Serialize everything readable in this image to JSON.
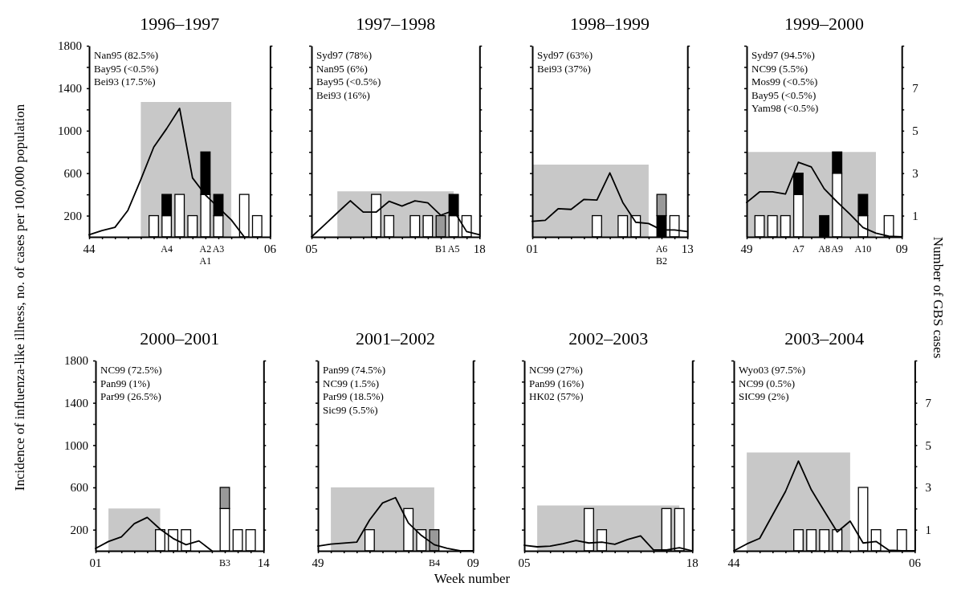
{
  "chart_data": [
    {
      "type": "bar",
      "title": "1996–1997",
      "ylabel": "Incidence of influenza-like illness, no. of cases per 100,000 population",
      "stacked": true,
      "tick_labels": "xy",
      "categories": [
        "44",
        null,
        null,
        null,
        null,
        null,
        "A4",
        null,
        null,
        "A2\nA1",
        "A3",
        null,
        null,
        null,
        "06"
      ],
      "ylim": [
        0,
        1800
      ],
      "yticks": [
        200,
        {
          "value": 400,
          "label": null
        },
        600,
        {
          "value": 800,
          "label": null
        },
        1000,
        {
          "value": 1200,
          "label": null
        },
        1400,
        {
          "value": 1600,
          "label": null
        },
        1800
      ],
      "y2lim": [
        0,
        9
      ],
      "series": [
        {
          "type": "area",
          "color": "#c8c8c8",
          "values": [
            null,
            null,
            null,
            null,
            1270,
            1270,
            1270,
            1270,
            1270,
            1270,
            1270,
            1270,
            null,
            null,
            null
          ]
        },
        {
          "axis": "y2",
          "color": "#ffffff",
          "values": [
            null,
            null,
            null,
            null,
            null,
            1,
            1,
            2,
            1,
            2,
            1,
            null,
            2,
            1,
            null
          ]
        },
        {
          "axis": "y2",
          "color": "#000000",
          "values": [
            null,
            null,
            null,
            null,
            null,
            null,
            1,
            null,
            null,
            2,
            1,
            null,
            null,
            null,
            null
          ]
        },
        {
          "type": "line",
          "color": "#000000",
          "values": [
            20,
            60,
            90,
            250,
            540,
            845,
            1020,
            1210,
            555,
            395,
            277,
            160,
            0,
            null,
            null
          ]
        }
      ],
      "annotations": [
        "Nan95 (82.5%)",
        "Bay95 (<0.5%)",
        "Bei93 (17.5%)"
      ]
    },
    {
      "type": "bar",
      "title": "1997–1998",
      "stacked": true,
      "tick_labels": "x",
      "categories": [
        "05",
        null,
        null,
        null,
        null,
        null,
        null,
        null,
        null,
        null,
        "B1",
        "A5",
        null,
        "18"
      ],
      "ylim": [
        0,
        1800
      ],
      "yticks": [
        200,
        {
          "value": 400,
          "label": null
        },
        600,
        {
          "value": 800,
          "label": null
        },
        1000,
        {
          "value": 1200,
          "label": null
        },
        1400,
        {
          "value": 1600,
          "label": null
        },
        1800
      ],
      "y2lim": [
        0,
        9
      ],
      "y2ticks": [
        1,
        {
          "value": 2,
          "label": null
        },
        3,
        {
          "value": 4,
          "label": null
        },
        5,
        {
          "value": 6,
          "label": null
        },
        7,
        {
          "value": 8,
          "label": null
        },
        {
          "value": 9,
          "label": null
        }
      ],
      "series": [
        {
          "type": "area",
          "color": "#c8c8c8",
          "values": [
            null,
            null,
            430,
            430,
            430,
            430,
            430,
            430,
            430,
            430,
            430,
            430,
            null,
            null
          ]
        },
        {
          "axis": "y2",
          "color": "#ffffff",
          "values": [
            null,
            null,
            null,
            null,
            null,
            2,
            1,
            null,
            1,
            1,
            null,
            1,
            1,
            null
          ]
        },
        {
          "axis": "y2",
          "color": "#000000",
          "values": [
            null,
            null,
            null,
            null,
            null,
            null,
            null,
            null,
            null,
            null,
            null,
            1,
            null,
            null
          ]
        },
        {
          "axis": "y2",
          "color": "#999999",
          "values": [
            null,
            null,
            null,
            null,
            null,
            null,
            null,
            null,
            null,
            null,
            1,
            null,
            null,
            null
          ]
        },
        {
          "type": "line",
          "color": "#000000",
          "values": [
            0,
            113,
            227,
            340,
            233,
            233,
            335,
            290,
            340,
            320,
            204,
            248,
            50,
            20
          ]
        }
      ],
      "annotations": [
        "Syd97 (78%)",
        "Nan95 (6%)",
        "Bay95 (<0.5%)",
        "Bei93 (16%)"
      ]
    },
    {
      "type": "bar",
      "title": "1998–1999",
      "stacked": true,
      "tick_labels": "x",
      "categories": [
        "01",
        null,
        null,
        null,
        null,
        null,
        null,
        null,
        null,
        null,
        "A6\nB2",
        null,
        "13"
      ],
      "ylim": [
        0,
        1800
      ],
      "yticks": [
        200,
        {
          "value": 400,
          "label": null
        },
        600,
        {
          "value": 800,
          "label": null
        },
        1000,
        {
          "value": 1200,
          "label": null
        },
        1400,
        {
          "value": 1600,
          "label": null
        },
        1800
      ],
      "y2lim": [
        0,
        9
      ],
      "y2ticks": [
        1,
        {
          "value": 2,
          "label": null
        },
        3,
        {
          "value": 4,
          "label": null
        },
        5,
        {
          "value": 6,
          "label": null
        },
        7,
        {
          "value": 8,
          "label": null
        },
        {
          "value": 9,
          "label": null
        }
      ],
      "series": [
        {
          "type": "area",
          "color": "#c8c8c8",
          "values": [
            680,
            680,
            680,
            680,
            680,
            680,
            680,
            680,
            680,
            680,
            null,
            null,
            null
          ]
        },
        {
          "axis": "y2",
          "color": "#ffffff",
          "values": [
            null,
            null,
            null,
            null,
            null,
            1,
            null,
            1,
            1,
            null,
            null,
            1,
            null
          ]
        },
        {
          "axis": "y2",
          "color": "#000000",
          "values": [
            null,
            null,
            null,
            null,
            null,
            null,
            null,
            null,
            null,
            null,
            1,
            null,
            null
          ]
        },
        {
          "axis": "y2",
          "color": "#999999",
          "values": [
            null,
            null,
            null,
            null,
            null,
            null,
            null,
            null,
            null,
            null,
            1,
            null,
            null
          ]
        },
        {
          "type": "line",
          "color": "#000000",
          "values": [
            147,
            156,
            265,
            259,
            353,
            347,
            603,
            324,
            138,
            126,
            65,
            65,
            50
          ]
        }
      ],
      "annotations": [
        "Syd97 (63%)",
        "Bei93 (37%)"
      ]
    },
    {
      "type": "bar",
      "title": "1999–2000",
      "y2label": "Number of GBS cases",
      "stacked": true,
      "tick_labels": "xy2",
      "categories": [
        "49",
        null,
        null,
        null,
        "A7",
        null,
        "A8",
        "A9",
        null,
        "A10",
        null,
        null,
        "09"
      ],
      "ylim": [
        0,
        1800
      ],
      "y2lim": [
        0,
        9
      ],
      "y2ticks": [
        1,
        {
          "value": 2,
          "label": null
        },
        3,
        {
          "value": 4,
          "label": null
        },
        5,
        {
          "value": 6,
          "label": null
        },
        7,
        {
          "value": 8,
          "label": null
        },
        {
          "value": 9,
          "label": null
        }
      ],
      "series": [
        {
          "type": "area",
          "color": "#c8c8c8",
          "values": [
            800,
            800,
            800,
            800,
            800,
            800,
            800,
            800,
            800,
            800,
            800,
            null,
            null
          ]
        },
        {
          "axis": "y2",
          "color": "#ffffff",
          "values": [
            null,
            1,
            1,
            1,
            2,
            null,
            null,
            3,
            null,
            1,
            null,
            1,
            null
          ]
        },
        {
          "axis": "y2",
          "color": "#000000",
          "values": [
            null,
            null,
            null,
            null,
            1,
            null,
            1,
            1,
            null,
            1,
            null,
            null,
            null
          ]
        },
        {
          "type": "line",
          "color": "#000000",
          "values": [
            324,
            424,
            424,
            403,
            703,
            659,
            453,
            329,
            212,
            88,
            35,
            6,
            0
          ]
        }
      ],
      "annotations": [
        "Syd97 (94.5%)",
        "NC99 (5.5%)",
        "Mos99 (<0.5%)",
        "Bay95 (<0.5%)",
        "Yam98 (<0.5%)"
      ]
    },
    {
      "type": "bar",
      "title": "2000–2001",
      "stacked": true,
      "tick_labels": "xy",
      "categories": [
        "01",
        null,
        null,
        null,
        null,
        null,
        null,
        null,
        null,
        null,
        "B3",
        null,
        null,
        "14"
      ],
      "ylim": [
        0,
        1800
      ],
      "yticks": [
        200,
        {
          "value": 400,
          "label": null
        },
        600,
        {
          "value": 800,
          "label": null
        },
        1000,
        {
          "value": 1200,
          "label": null
        },
        1400,
        {
          "value": 1600,
          "label": null
        },
        1800
      ],
      "y2lim": [
        0,
        9
      ],
      "series": [
        {
          "type": "area",
          "color": "#c8c8c8",
          "values": [
            null,
            400,
            400,
            400,
            400,
            400,
            null,
            null,
            null,
            null,
            null,
            null,
            null,
            null
          ]
        },
        {
          "axis": "y2",
          "color": "#ffffff",
          "values": [
            null,
            null,
            null,
            null,
            null,
            1,
            1,
            1,
            null,
            null,
            2,
            1,
            1,
            null
          ]
        },
        {
          "axis": "y2",
          "color": "#999999",
          "values": [
            null,
            null,
            null,
            null,
            null,
            null,
            null,
            null,
            null,
            null,
            1,
            null,
            null,
            null
          ]
        },
        {
          "type": "line",
          "color": "#000000",
          "values": [
            23,
            88,
            132,
            257,
            316,
            205,
            117,
            58,
            94,
            0,
            null,
            null,
            null,
            null
          ]
        }
      ],
      "annotations": [
        "NC99 (72.5%)",
        "Pan99 (1%)",
        "Par99 (26.5%)"
      ]
    },
    {
      "type": "bar",
      "title": "2001–2002",
      "xlabel": "Week number",
      "stacked": true,
      "tick_labels": "x",
      "categories": [
        "49",
        null,
        null,
        null,
        null,
        null,
        null,
        null,
        null,
        "B4",
        null,
        null,
        "09"
      ],
      "ylim": [
        0,
        1800
      ],
      "yticks": [
        200,
        {
          "value": 400,
          "label": null
        },
        600,
        {
          "value": 800,
          "label": null
        },
        1000,
        {
          "value": 1200,
          "label": null
        },
        1400,
        {
          "value": 1600,
          "label": null
        },
        1800
      ],
      "y2lim": [
        0,
        9
      ],
      "y2ticks": [
        1,
        {
          "value": 2,
          "label": null
        },
        3,
        {
          "value": 4,
          "label": null
        },
        5,
        {
          "value": 6,
          "label": null
        },
        7,
        {
          "value": 8,
          "label": null
        },
        {
          "value": 9,
          "label": null
        }
      ],
      "series": [
        {
          "type": "area",
          "color": "#c8c8c8",
          "values": [
            null,
            600,
            600,
            600,
            600,
            600,
            600,
            600,
            600,
            600,
            null,
            null,
            null
          ]
        },
        {
          "axis": "y2",
          "color": "#ffffff",
          "values": [
            null,
            null,
            null,
            null,
            1,
            null,
            null,
            2,
            1,
            null,
            null,
            null,
            null
          ]
        },
        {
          "axis": "y2",
          "color": "#999999",
          "values": [
            null,
            null,
            null,
            null,
            null,
            null,
            null,
            null,
            null,
            1,
            null,
            null,
            null
          ]
        },
        {
          "type": "line",
          "color": "#000000",
          "values": [
            44,
            64,
            73,
            82,
            292,
            453,
            503,
            263,
            146,
            58,
            23,
            0,
            0
          ]
        }
      ],
      "annotations": [
        "Pan99 (74.5%)",
        "NC99 (1.5%)",
        "Par99 (18.5%)",
        "Sic99 (5.5%)"
      ]
    },
    {
      "type": "bar",
      "title": "2002–2003",
      "stacked": true,
      "tick_labels": "x",
      "categories": [
        "05",
        null,
        null,
        null,
        null,
        null,
        null,
        null,
        null,
        null,
        null,
        null,
        null,
        "18"
      ],
      "ylim": [
        0,
        1800
      ],
      "yticks": [
        200,
        {
          "value": 400,
          "label": null
        },
        600,
        {
          "value": 800,
          "label": null
        },
        1000,
        {
          "value": 1200,
          "label": null
        },
        1400,
        {
          "value": 1600,
          "label": null
        },
        1800
      ],
      "y2lim": [
        0,
        9
      ],
      "y2ticks": [
        1,
        {
          "value": 2,
          "label": null
        },
        3,
        {
          "value": 4,
          "label": null
        },
        5,
        {
          "value": 6,
          "label": null
        },
        7,
        {
          "value": 8,
          "label": null
        },
        {
          "value": 9,
          "label": null
        }
      ],
      "series": [
        {
          "type": "area",
          "color": "#c8c8c8",
          "values": [
            null,
            430,
            430,
            430,
            430,
            430,
            430,
            430,
            430,
            430,
            430,
            430,
            430,
            null
          ]
        },
        {
          "axis": "y2",
          "color": "#ffffff",
          "values": [
            null,
            null,
            null,
            null,
            null,
            2,
            1,
            null,
            null,
            null,
            null,
            2,
            2,
            null
          ]
        },
        {
          "type": "line",
          "color": "#000000",
          "values": [
            53,
            38,
            44,
            68,
            98,
            74,
            83,
            62,
            107,
            142,
            9,
            9,
            30,
            0
          ]
        }
      ],
      "annotations": [
        "NC99 (27%)",
        "Pan99 (16%)",
        "HK02 (57%)"
      ]
    },
    {
      "type": "bar",
      "title": "2003–2004",
      "stacked": true,
      "tick_labels": "xy2",
      "categories": [
        "44",
        null,
        null,
        null,
        null,
        null,
        null,
        null,
        null,
        null,
        null,
        null,
        null,
        null,
        "06"
      ],
      "ylim": [
        0,
        1800
      ],
      "y2lim": [
        0,
        9
      ],
      "y2ticks": [
        1,
        {
          "value": 2,
          "label": null
        },
        3,
        {
          "value": 4,
          "label": null
        },
        5,
        {
          "value": 6,
          "label": null
        },
        7,
        {
          "value": 8,
          "label": null
        },
        {
          "value": 9,
          "label": null
        }
      ],
      "series": [
        {
          "type": "area",
          "color": "#c8c8c8",
          "values": [
            null,
            930,
            930,
            930,
            930,
            930,
            930,
            930,
            930,
            930,
            null,
            null,
            null,
            null,
            null
          ]
        },
        {
          "axis": "y2",
          "color": "#ffffff",
          "values": [
            null,
            null,
            null,
            null,
            null,
            1,
            1,
            1,
            1,
            null,
            3,
            1,
            null,
            1,
            null
          ]
        },
        {
          "type": "line",
          "color": "#000000",
          "values": [
            0,
            65,
            118,
            340,
            562,
            849,
            577,
            376,
            178,
            281,
            74,
            89,
            6,
            0,
            0
          ]
        }
      ],
      "annotations": [
        "Wyo03 (97.5%)",
        "NC99 (0.5%)",
        "SIC99 (2%)"
      ]
    }
  ]
}
